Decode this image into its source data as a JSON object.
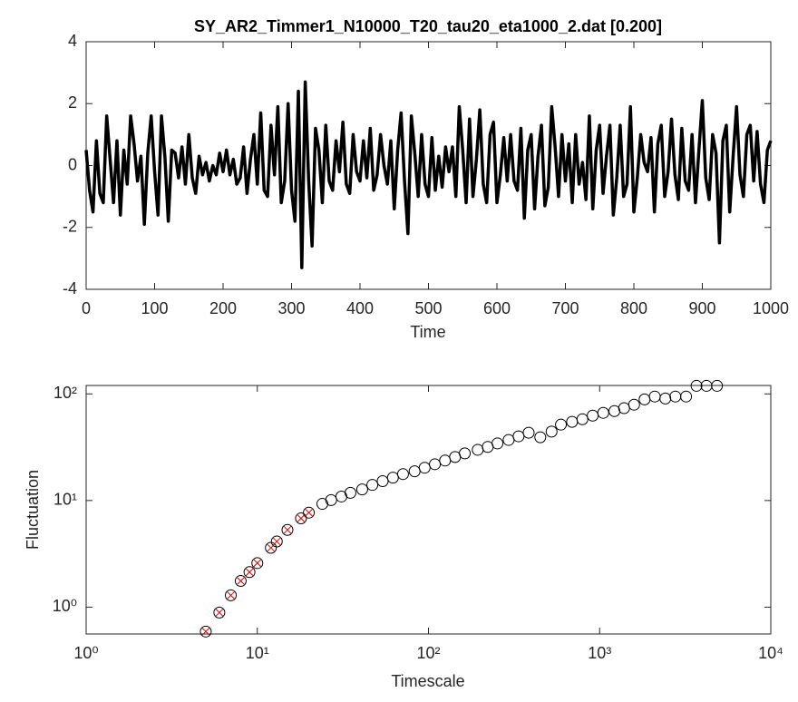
{
  "chart_data": [
    {
      "type": "line",
      "title": "SY_AR2_Timmer1_N10000_T20_tau20_eta1000_2.dat [0.200]",
      "x_label": "Time",
      "color": "#000000",
      "xlim": [
        0,
        1000
      ],
      "ylim": [
        -4,
        4
      ],
      "xticks": [
        0,
        100,
        200,
        300,
        400,
        500,
        600,
        700,
        800,
        900,
        1000
      ],
      "yticks": [
        -4,
        -2,
        0,
        2,
        4
      ],
      "x": [
        0,
        5,
        10,
        15,
        20,
        25,
        30,
        35,
        40,
        45,
        50,
        55,
        60,
        65,
        70,
        75,
        80,
        85,
        90,
        95,
        100,
        105,
        110,
        115,
        120,
        125,
        130,
        135,
        140,
        145,
        150,
        155,
        160,
        165,
        170,
        175,
        180,
        185,
        190,
        195,
        200,
        205,
        210,
        215,
        220,
        225,
        230,
        235,
        240,
        245,
        250,
        255,
        260,
        265,
        270,
        275,
        280,
        285,
        290,
        295,
        300,
        305,
        310,
        315,
        320,
        325,
        330,
        335,
        340,
        345,
        350,
        355,
        360,
        365,
        370,
        375,
        380,
        385,
        390,
        395,
        400,
        405,
        410,
        415,
        420,
        425,
        430,
        435,
        440,
        445,
        450,
        455,
        460,
        465,
        470,
        475,
        480,
        485,
        490,
        495,
        500,
        505,
        510,
        515,
        520,
        525,
        530,
        535,
        540,
        545,
        550,
        555,
        560,
        565,
        570,
        575,
        580,
        585,
        590,
        595,
        600,
        605,
        610,
        615,
        620,
        625,
        630,
        635,
        640,
        645,
        650,
        655,
        660,
        665,
        670,
        675,
        680,
        685,
        690,
        695,
        700,
        705,
        710,
        715,
        720,
        725,
        730,
        735,
        740,
        745,
        750,
        755,
        760,
        765,
        770,
        775,
        780,
        785,
        790,
        795,
        800,
        805,
        810,
        815,
        820,
        825,
        830,
        835,
        840,
        845,
        850,
        855,
        860,
        865,
        870,
        875,
        880,
        885,
        890,
        895,
        900,
        905,
        910,
        915,
        920,
        925,
        930,
        935,
        940,
        945,
        950,
        955,
        960,
        965,
        970,
        975,
        980,
        985,
        990,
        995,
        1000
      ],
      "values": [
        0.5,
        -0.8,
        -1.5,
        0.8,
        -0.9,
        -1.2,
        1.6,
        0.2,
        -1.2,
        0.8,
        -1.6,
        0.5,
        -0.6,
        1.6,
        0.7,
        -0.5,
        0.3,
        -1.9,
        0.4,
        1.6,
        -0.2,
        -1.6,
        1.6,
        0.3,
        -1.8,
        0.5,
        0.4,
        -0.4,
        0.6,
        -0.6,
        1.0,
        -0.4,
        -0.9,
        0.3,
        -0.3,
        0.1,
        -0.5,
        0.0,
        -0.3,
        0.4,
        -0.2,
        0.5,
        -0.3,
        0.2,
        -0.6,
        -0.4,
        0.6,
        -0.9,
        0.2,
        1.0,
        -0.6,
        1.7,
        -0.8,
        -1.0,
        1.3,
        -0.3,
        1.9,
        -1.2,
        -0.5,
        2.0,
        -0.8,
        -1.8,
        2.4,
        -3.3,
        2.7,
        -0.5,
        -2.6,
        1.2,
        0.5,
        -1.2,
        1.3,
        -0.5,
        -0.8,
        0.8,
        -0.2,
        1.4,
        -0.6,
        -0.9,
        1.0,
        -0.2,
        -0.5,
        0.8,
        -0.4,
        1.2,
        -0.8,
        -0.3,
        1.0,
        0.0,
        -0.6,
        0.8,
        -1.4,
        0.5,
        1.7,
        -0.5,
        -2.2,
        1.6,
        0.4,
        -1.0,
        1.0,
        -0.6,
        -1.0,
        0.9,
        -0.8,
        0.3,
        -0.7,
        0.6,
        -0.2,
        0.6,
        -1.0,
        1.9,
        0.5,
        -1.2,
        1.5,
        -1.0,
        0.2,
        1.8,
        -0.6,
        -1.2,
        1.0,
        1.4,
        -1.2,
        -0.3,
        0.9,
        -0.5,
        1.0,
        -0.5,
        -0.8,
        1.2,
        -1.7,
        0.5,
        1.0,
        -1.4,
        0.3,
        1.3,
        -1.3,
        -0.7,
        1.9,
        0.6,
        -1.0,
        1.0,
        -0.5,
        0.7,
        -1.2,
        1.0,
        -0.6,
        0.1,
        -1.1,
        1.6,
        -1.4,
        0.5,
        1.3,
        -0.9,
        0.3,
        1.3,
        -1.6,
        -0.4,
        1.3,
        -1.0,
        -0.6,
        1.9,
        -1.5,
        -0.4,
        1.0,
        0.1,
        -0.2,
        0.9,
        -1.5,
        0.7,
        1.3,
        -1.0,
        -0.2,
        1.5,
        -0.3,
        -1.1,
        1.2,
        -0.5,
        -0.8,
        1.0,
        -1.2,
        0.5,
        2.1,
        -0.4,
        -1.1,
        1.0,
        0.4,
        -2.5,
        0.8,
        1.3,
        -1.5,
        0.3,
        1.9,
        -0.3,
        -1.0,
        1.0,
        1.3,
        -0.5,
        1.1,
        -0.6,
        -1.2,
        0.5,
        0.8
      ]
    },
    {
      "type": "scatter",
      "x_label": "Timescale",
      "y_label": "Fluctuation",
      "xscale": "log",
      "yscale": "log",
      "xlim": [
        1,
        10000
      ],
      "ylim": [
        0.56,
        120
      ],
      "xticks": [
        {
          "value": 1,
          "label": "10⁰"
        },
        {
          "value": 10,
          "label": "10¹"
        },
        {
          "value": 100,
          "label": "10²"
        },
        {
          "value": 1000,
          "label": "10³"
        },
        {
          "value": 10000,
          "label": "10⁴"
        }
      ],
      "yticks": [
        {
          "value": 1,
          "label": "10⁰"
        },
        {
          "value": 10,
          "label": "10¹"
        },
        {
          "value": 100,
          "label": "10²"
        }
      ],
      "series": [
        {
          "marker": "circle-x",
          "color": "#000000",
          "cross_color": "#e00000",
          "x": [
            5,
            6,
            7,
            8,
            9,
            10,
            12,
            13,
            15,
            18,
            20
          ],
          "values": [
            0.59,
            0.89,
            1.29,
            1.76,
            2.13,
            2.59,
            3.6,
            4.13,
            5.3,
            6.8,
            7.7
          ]
        },
        {
          "marker": "circle",
          "color": "#000000",
          "x": [
            24,
            27,
            31,
            35,
            41,
            47,
            54,
            62,
            71,
            83,
            95,
            109,
            125,
            143,
            163,
            194,
            222,
            253,
            294,
            336,
            385,
            450,
            524,
            594,
            690,
            793,
            911,
            1050,
            1220,
            1390,
            1590,
            1830,
            2100,
            2420,
            2770,
            3200,
            3680,
            4210,
            4850
          ],
          "values": [
            9.3,
            10.1,
            10.9,
            11.8,
            12.7,
            14.0,
            15.2,
            16.4,
            17.7,
            18.8,
            20.3,
            21.9,
            23.7,
            25.6,
            27.7,
            29.9,
            31.8,
            34.3,
            37.0,
            40.0,
            43.2,
            39.2,
            44.3,
            51.5,
            54.7,
            57.8,
            62.6,
            66.4,
            69.0,
            73.5,
            79.2,
            88.8,
            94.5,
            90.5,
            94.5,
            94.5,
            119,
            119,
            119
          ]
        }
      ]
    }
  ]
}
